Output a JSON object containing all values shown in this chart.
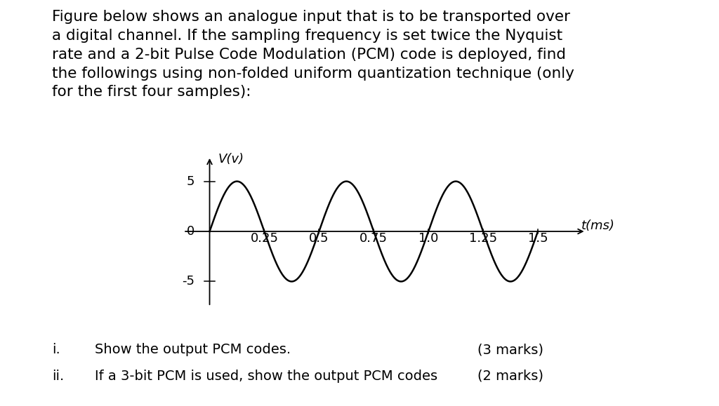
{
  "title_lines": [
    "Figure below shows an analogue input that is to be transported over",
    "a digital channel. If the sampling frequency is set twice the Nyquist",
    "rate and a 2-bit Pulse Code Modulation (PCM) code is deployed, find",
    "the followings using non-folded uniform quantization technique (only",
    "for the first four samples):"
  ],
  "ylabel": "V(v)",
  "xlabel": "t(ms)",
  "amplitude": 5,
  "frequency": 2,
  "t_start": 0,
  "t_end": 1.5,
  "ylim": [
    -7.5,
    7.5
  ],
  "xlim": [
    -0.12,
    1.72
  ],
  "xticks": [
    0.25,
    0.5,
    0.75,
    1.0,
    1.25,
    1.5
  ],
  "xtick_labels": [
    "0.25",
    "0.5",
    "0.75",
    "1.0",
    "1.25",
    "1.5"
  ],
  "item_i": "i.",
  "item_ii": "ii.",
  "text_i": "Show the output PCM codes.",
  "text_ii": "If a 3-bit PCM is used, show the output PCM codes",
  "marks_i": "(3 marks)",
  "marks_ii": "(2 marks)",
  "bg_color": "#ffffff",
  "line_color": "#000000",
  "font_size_title": 15.5,
  "font_size_axis_label": 13,
  "font_size_tick": 13,
  "font_size_items": 14
}
